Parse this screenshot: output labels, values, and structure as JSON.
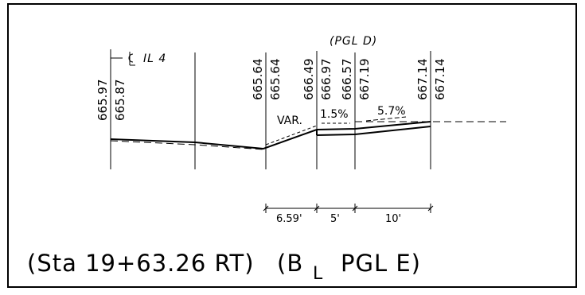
{
  "title": "(Sta 19+63.26 RT)",
  "baseline": {
    "prefix": "(B",
    "subscript": "L",
    "suffix": "PGL E)"
  },
  "centerline_label": "IL 4",
  "profile_label": "(PGL D)",
  "elevations": [
    "665.97",
    "665.87",
    "665.64",
    "665.64",
    "666.49",
    "666.97",
    "666.57",
    "667.19",
    "667.14",
    "667.14"
  ],
  "slopes": {
    "var": "VAR.",
    "s1": "1.5%",
    "s2": "5.7%"
  },
  "dimensions": [
    "6.59'",
    "5'",
    "10'"
  ]
}
